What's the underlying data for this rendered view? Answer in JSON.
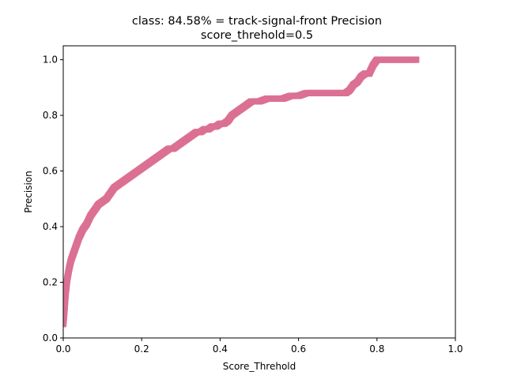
{
  "chart_data": {
    "type": "scatter",
    "title_line1": "class: 84.58% = track-signal-front Precision",
    "title_line2": "score_threhold=0.5",
    "xlabel": "Score_Threhold",
    "ylabel": "Precision",
    "xlim": [
      0,
      1
    ],
    "ylim": [
      0,
      1.05
    ],
    "xticks": [
      "0.0",
      "0.2",
      "0.4",
      "0.6",
      "0.8",
      "1.0"
    ],
    "yticks": [
      "0.0",
      "0.2",
      "0.4",
      "0.6",
      "0.8",
      "1.0"
    ],
    "grid": false,
    "marker": "square",
    "color": "#DB7093",
    "series": [
      {
        "x": [
          0.0,
          0.003,
          0.006,
          0.01,
          0.015,
          0.02,
          0.03,
          0.04,
          0.05,
          0.06,
          0.07,
          0.08,
          0.09,
          0.1,
          0.11,
          0.12,
          0.13,
          0.14,
          0.15,
          0.16,
          0.17,
          0.18,
          0.19,
          0.2,
          0.21,
          0.22,
          0.23,
          0.24,
          0.25,
          0.26,
          0.27,
          0.28,
          0.29,
          0.3,
          0.31,
          0.32,
          0.33,
          0.34,
          0.35,
          0.36,
          0.37,
          0.38,
          0.39,
          0.4,
          0.41,
          0.42,
          0.43,
          0.44,
          0.45,
          0.46,
          0.47,
          0.48,
          0.5,
          0.52,
          0.54,
          0.56,
          0.58,
          0.6,
          0.62,
          0.64,
          0.66,
          0.68,
          0.7,
          0.72,
          0.73,
          0.74,
          0.75,
          0.76,
          0.77,
          0.78,
          0.79,
          0.8,
          0.82,
          0.84,
          0.86,
          0.88,
          0.9
        ],
        "y": [
          0.05,
          0.1,
          0.16,
          0.21,
          0.25,
          0.28,
          0.32,
          0.36,
          0.39,
          0.41,
          0.44,
          0.46,
          0.48,
          0.49,
          0.5,
          0.52,
          0.54,
          0.55,
          0.56,
          0.57,
          0.58,
          0.59,
          0.6,
          0.61,
          0.62,
          0.63,
          0.64,
          0.65,
          0.66,
          0.67,
          0.68,
          0.68,
          0.69,
          0.7,
          0.71,
          0.72,
          0.73,
          0.74,
          0.74,
          0.75,
          0.75,
          0.76,
          0.76,
          0.77,
          0.77,
          0.78,
          0.8,
          0.81,
          0.82,
          0.83,
          0.84,
          0.85,
          0.85,
          0.86,
          0.86,
          0.86,
          0.87,
          0.87,
          0.88,
          0.88,
          0.88,
          0.88,
          0.88,
          0.88,
          0.89,
          0.91,
          0.92,
          0.94,
          0.95,
          0.95,
          0.98,
          1.0,
          1.0,
          1.0,
          1.0,
          1.0,
          1.0
        ]
      }
    ]
  }
}
